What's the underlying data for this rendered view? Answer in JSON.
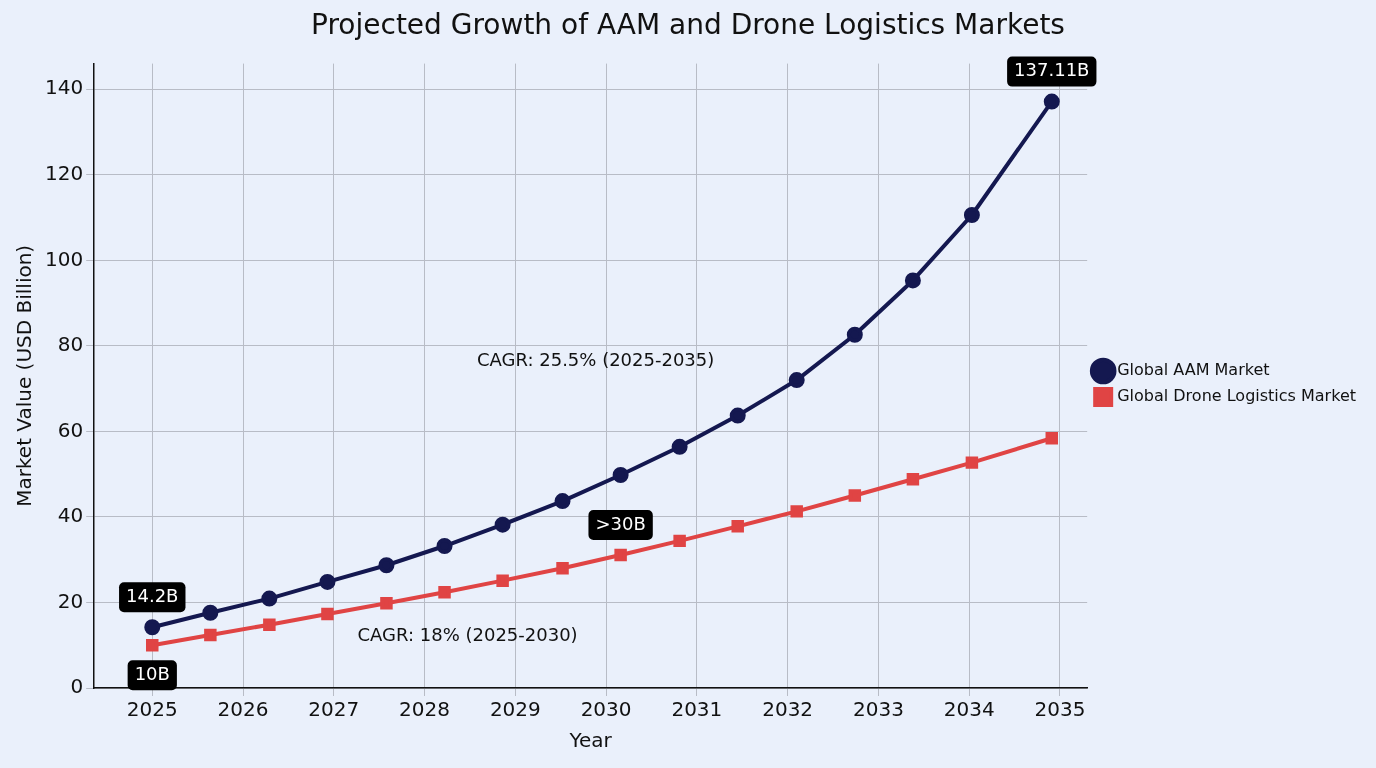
{
  "chart_data": {
    "type": "line",
    "title": "Projected Growth of AAM and Drone Logistics Markets",
    "xlabel": "Year",
    "ylabel": "Market Value (USD Billion)",
    "x": [
      2025,
      2025.64,
      2026.29,
      2026.93,
      2027.58,
      2028.22,
      2028.86,
      2029.52,
      2030.16,
      2030.81,
      2031.45,
      2032.1,
      2032.74,
      2033.38,
      2034.03,
      2034.91
    ],
    "series": [
      {
        "name": "Global AAM Market",
        "color": "#141850",
        "marker": "circle",
        "values": [
          14.2,
          17.6,
          20.9,
          24.8,
          28.7,
          33.2,
          38.2,
          43.7,
          49.8,
          56.4,
          63.7,
          72,
          82.6,
          95.3,
          110.6,
          137.11
        ]
      },
      {
        "name": "Global Drone Logistics Market",
        "color": "#e04444",
        "marker": "square",
        "values": [
          10,
          12.4,
          14.8,
          17.3,
          19.8,
          22.4,
          25.1,
          28,
          31.1,
          34.4,
          37.8,
          41.3,
          45,
          48.8,
          52.7,
          58.4
        ]
      }
    ],
    "xlim": [
      2024.36,
      2035.3
    ],
    "xticks": [
      2025,
      2026,
      2027,
      2028,
      2029,
      2030,
      2031,
      2032,
      2033,
      2034,
      2035
    ],
    "ylim": [
      0,
      146
    ],
    "yticks": [
      0,
      20,
      40,
      60,
      80,
      100,
      120,
      140
    ],
    "grid": true,
    "legend": "right",
    "line_style": "solid",
    "annotations": [
      {
        "text": "14.2B",
        "x": 2025,
        "y": 14.2
      },
      {
        "text": "10B",
        "x": 2025,
        "y": 10
      },
      {
        "text": "137.11B",
        "x": 2034.91,
        "y": 137.11
      },
      {
        "text": ">30B",
        "x": 2030.16,
        "y": 31.1
      },
      "CAGR: 25.5% (2025-2035)",
      "CAGR: 18% (2025-2030)"
    ]
  }
}
